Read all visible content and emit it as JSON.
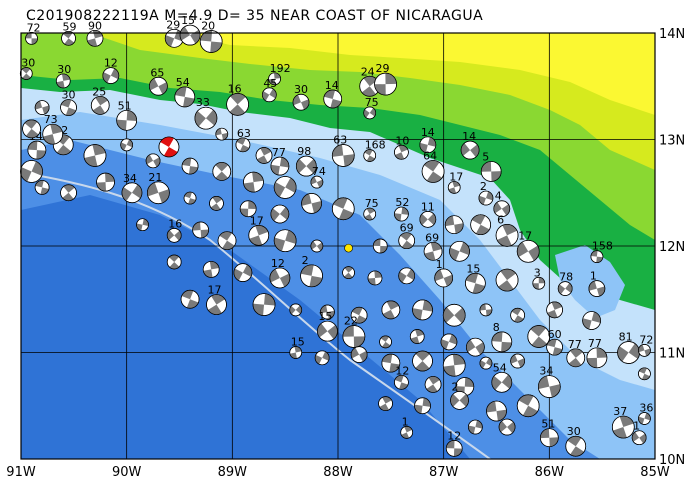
{
  "title": "C201908222119A  M=4.9  D= 35  NEAR COAST OF NICARAGUA",
  "map": {
    "lon_range": [
      -91,
      -85
    ],
    "lat_range": [
      10,
      14
    ],
    "lon_ticks": [
      {
        "value": -91,
        "label": "91W"
      },
      {
        "value": -90,
        "label": "90W"
      },
      {
        "value": -89,
        "label": "89W"
      },
      {
        "value": -88,
        "label": "88W"
      },
      {
        "value": -87,
        "label": "87W"
      },
      {
        "value": -86,
        "label": "86W"
      },
      {
        "value": -85,
        "label": "85W"
      }
    ],
    "lat_ticks": [
      {
        "value": 14,
        "label": "14N"
      },
      {
        "value": 13,
        "label": "13N"
      },
      {
        "value": 12,
        "label": "12N"
      },
      {
        "value": 11,
        "label": "11N"
      },
      {
        "value": 10,
        "label": "10N"
      }
    ],
    "colors": {
      "deep_ocean": "#2f73d6",
      "mid_ocean": "#4d8fe6",
      "shelf": "#8ec4f7",
      "coast_shallow": "#c4e2fb",
      "lowland": "#19b043",
      "hill": "#8ad832",
      "upland": "#d6ea1e",
      "highland": "#fbf832",
      "focal_fill": "#7a7a7a",
      "target_fill": "#e01010",
      "grid": "#000000"
    },
    "target_event": {
      "lon": -89.6,
      "lat": 12.93,
      "label": ""
    },
    "epicenter": {
      "lon": -87.9,
      "lat": 11.98
    },
    "events": [
      {
        "lon": -90.9,
        "lat": 13.95,
        "label": "72"
      },
      {
        "lon": -90.55,
        "lat": 13.95,
        "label": "59"
      },
      {
        "lon": -90.3,
        "lat": 13.95,
        "label": "90"
      },
      {
        "lon": -89.55,
        "lat": 13.95,
        "label": "29"
      },
      {
        "lon": -89.4,
        "lat": 13.98,
        "label": "15"
      },
      {
        "lon": -89.2,
        "lat": 13.92,
        "label": "20"
      },
      {
        "lon": -90.95,
        "lat": 13.62,
        "label": "30"
      },
      {
        "lon": -90.6,
        "lat": 13.55,
        "label": "30"
      },
      {
        "lon": -90.15,
        "lat": 13.6,
        "label": "12"
      },
      {
        "lon": -89.7,
        "lat": 13.5,
        "label": "65"
      },
      {
        "lon": -89.45,
        "lat": 13.4,
        "label": "54"
      },
      {
        "lon": -88.95,
        "lat": 13.33,
        "label": "16"
      },
      {
        "lon": -88.6,
        "lat": 13.57,
        "label": "192"
      },
      {
        "lon": -88.65,
        "lat": 13.42,
        "label": "45"
      },
      {
        "lon": -88.35,
        "lat": 13.35,
        "label": "30"
      },
      {
        "lon": -88.05,
        "lat": 13.38,
        "label": "14"
      },
      {
        "lon": -87.7,
        "lat": 13.5,
        "label": "24"
      },
      {
        "lon": -87.55,
        "lat": 13.52,
        "label": "29"
      },
      {
        "lon": -87.7,
        "lat": 13.25,
        "label": "75"
      },
      {
        "lon": -90.8,
        "lat": 13.3,
        "label": ""
      },
      {
        "lon": -90.55,
        "lat": 13.3,
        "label": "30"
      },
      {
        "lon": -90.25,
        "lat": 13.32,
        "label": "25"
      },
      {
        "lon": -90.0,
        "lat": 13.18,
        "label": "51"
      },
      {
        "lon": -89.25,
        "lat": 13.2,
        "label": "33"
      },
      {
        "lon": -89.1,
        "lat": 13.05,
        "label": ""
      },
      {
        "lon": -88.9,
        "lat": 12.95,
        "label": "63"
      },
      {
        "lon": -88.7,
        "lat": 12.85,
        "label": ""
      },
      {
        "lon": -88.55,
        "lat": 12.75,
        "label": "77"
      },
      {
        "lon": -88.3,
        "lat": 12.75,
        "label": "98"
      },
      {
        "lon": -87.95,
        "lat": 12.85,
        "label": "63"
      },
      {
        "lon": -87.7,
        "lat": 12.85,
        "label": "168"
      },
      {
        "lon": -87.4,
        "lat": 12.88,
        "label": "10"
      },
      {
        "lon": -87.15,
        "lat": 12.95,
        "label": "14"
      },
      {
        "lon": -86.75,
        "lat": 12.9,
        "label": "14"
      },
      {
        "lon": -86.55,
        "lat": 12.7,
        "label": "5"
      },
      {
        "lon": -87.1,
        "lat": 12.7,
        "label": "64"
      },
      {
        "lon": -86.9,
        "lat": 12.55,
        "label": "17"
      },
      {
        "lon": -86.6,
        "lat": 12.45,
        "label": "2"
      },
      {
        "lon": -86.45,
        "lat": 12.35,
        "label": "4"
      },
      {
        "lon": -90.85,
        "lat": 12.9,
        "label": "14"
      },
      {
        "lon": -90.6,
        "lat": 12.95,
        "label": "12"
      },
      {
        "lon": -90.3,
        "lat": 12.85,
        "label": ""
      },
      {
        "lon": -90.0,
        "lat": 12.95,
        "label": ""
      },
      {
        "lon": -89.75,
        "lat": 12.8,
        "label": ""
      },
      {
        "lon": -89.4,
        "lat": 12.75,
        "label": ""
      },
      {
        "lon": -89.1,
        "lat": 12.7,
        "label": ""
      },
      {
        "lon": -88.8,
        "lat": 12.6,
        "label": ""
      },
      {
        "lon": -88.5,
        "lat": 12.55,
        "label": ""
      },
      {
        "lon": -88.2,
        "lat": 12.6,
        "label": "74"
      },
      {
        "lon": -90.8,
        "lat": 12.55,
        "label": ""
      },
      {
        "lon": -90.55,
        "lat": 12.5,
        "label": ""
      },
      {
        "lon": -90.2,
        "lat": 12.6,
        "label": ""
      },
      {
        "lon": -89.95,
        "lat": 12.5,
        "label": "34"
      },
      {
        "lon": -89.7,
        "lat": 12.5,
        "label": "21"
      },
      {
        "lon": -89.4,
        "lat": 12.45,
        "label": ""
      },
      {
        "lon": -89.15,
        "lat": 12.4,
        "label": ""
      },
      {
        "lon": -88.85,
        "lat": 12.35,
        "label": ""
      },
      {
        "lon": -88.55,
        "lat": 12.3,
        "label": ""
      },
      {
        "lon": -88.25,
        "lat": 12.4,
        "label": ""
      },
      {
        "lon": -87.95,
        "lat": 12.35,
        "label": ""
      },
      {
        "lon": -87.7,
        "lat": 12.3,
        "label": "75"
      },
      {
        "lon": -87.4,
        "lat": 12.3,
        "label": "52"
      },
      {
        "lon": -87.15,
        "lat": 12.25,
        "label": "11"
      },
      {
        "lon": -86.9,
        "lat": 12.2,
        "label": ""
      },
      {
        "lon": -86.65,
        "lat": 12.2,
        "label": ""
      },
      {
        "lon": -86.4,
        "lat": 12.1,
        "label": "6"
      },
      {
        "lon": -89.85,
        "lat": 12.2,
        "label": ""
      },
      {
        "lon": -89.55,
        "lat": 12.1,
        "label": "16"
      },
      {
        "lon": -89.3,
        "lat": 12.15,
        "label": ""
      },
      {
        "lon": -89.05,
        "lat": 12.05,
        "label": ""
      },
      {
        "lon": -88.75,
        "lat": 12.1,
        "label": "17"
      },
      {
        "lon": -88.5,
        "lat": 12.05,
        "label": ""
      },
      {
        "lon": -88.2,
        "lat": 12.0,
        "label": ""
      },
      {
        "lon": -87.6,
        "lat": 12.0,
        "label": ""
      },
      {
        "lon": -87.35,
        "lat": 12.05,
        "label": "69"
      },
      {
        "lon": -87.1,
        "lat": 11.95,
        "label": "69"
      },
      {
        "lon": -86.85,
        "lat": 11.95,
        "label": ""
      },
      {
        "lon": -86.2,
        "lat": 11.95,
        "label": "17"
      },
      {
        "lon": -85.55,
        "lat": 11.9,
        "label": "158"
      },
      {
        "lon": -89.55,
        "lat": 11.85,
        "label": ""
      },
      {
        "lon": -89.2,
        "lat": 11.78,
        "label": ""
      },
      {
        "lon": -88.9,
        "lat": 11.75,
        "label": ""
      },
      {
        "lon": -88.55,
        "lat": 11.7,
        "label": "12"
      },
      {
        "lon": -88.25,
        "lat": 11.72,
        "label": "2"
      },
      {
        "lon": -87.9,
        "lat": 11.75,
        "label": ""
      },
      {
        "lon": -87.65,
        "lat": 11.7,
        "label": ""
      },
      {
        "lon": -87.35,
        "lat": 11.72,
        "label": ""
      },
      {
        "lon": -87.0,
        "lat": 11.7,
        "label": "1"
      },
      {
        "lon": -86.7,
        "lat": 11.65,
        "label": "15"
      },
      {
        "lon": -86.4,
        "lat": 11.68,
        "label": ""
      },
      {
        "lon": -86.1,
        "lat": 11.65,
        "label": "3"
      },
      {
        "lon": -85.85,
        "lat": 11.6,
        "label": "78"
      },
      {
        "lon": -85.55,
        "lat": 11.6,
        "label": "1"
      },
      {
        "lon": -89.4,
        "lat": 11.5,
        "label": ""
      },
      {
        "lon": -89.15,
        "lat": 11.45,
        "label": "17"
      },
      {
        "lon": -88.7,
        "lat": 11.45,
        "label": ""
      },
      {
        "lon": -88.4,
        "lat": 11.4,
        "label": ""
      },
      {
        "lon": -88.1,
        "lat": 11.38,
        "label": ""
      },
      {
        "lon": -87.8,
        "lat": 11.35,
        "label": ""
      },
      {
        "lon": -87.5,
        "lat": 11.4,
        "label": ""
      },
      {
        "lon": -87.2,
        "lat": 11.4,
        "label": ""
      },
      {
        "lon": -86.9,
        "lat": 11.35,
        "label": ""
      },
      {
        "lon": -86.6,
        "lat": 11.4,
        "label": ""
      },
      {
        "lon": -86.3,
        "lat": 11.35,
        "label": ""
      },
      {
        "lon": -85.95,
        "lat": 11.4,
        "label": ""
      },
      {
        "lon": -85.6,
        "lat": 11.3,
        "label": ""
      },
      {
        "lon": -88.1,
        "lat": 11.2,
        "label": "15"
      },
      {
        "lon": -87.85,
        "lat": 11.15,
        "label": "22"
      },
      {
        "lon": -87.55,
        "lat": 11.1,
        "label": ""
      },
      {
        "lon": -87.25,
        "lat": 11.15,
        "label": ""
      },
      {
        "lon": -86.95,
        "lat": 11.1,
        "label": ""
      },
      {
        "lon": -86.7,
        "lat": 11.05,
        "label": ""
      },
      {
        "lon": -86.45,
        "lat": 11.1,
        "label": "8"
      },
      {
        "lon": -86.1,
        "lat": 11.15,
        "label": ""
      },
      {
        "lon": -88.4,
        "lat": 11.0,
        "label": "15"
      },
      {
        "lon": -88.15,
        "lat": 10.95,
        "label": ""
      },
      {
        "lon": -87.8,
        "lat": 10.98,
        "label": ""
      },
      {
        "lon": -87.5,
        "lat": 10.9,
        "label": ""
      },
      {
        "lon": -87.2,
        "lat": 10.92,
        "label": ""
      },
      {
        "lon": -86.9,
        "lat": 10.88,
        "label": ""
      },
      {
        "lon": -86.6,
        "lat": 10.9,
        "label": ""
      },
      {
        "lon": -86.3,
        "lat": 10.92,
        "label": ""
      },
      {
        "lon": -85.95,
        "lat": 11.05,
        "label": "60"
      },
      {
        "lon": -85.75,
        "lat": 10.95,
        "label": "77"
      },
      {
        "lon": -85.55,
        "lat": 10.95,
        "label": "77"
      },
      {
        "lon": -85.25,
        "lat": 11.0,
        "label": "81"
      },
      {
        "lon": -85.1,
        "lat": 11.02,
        "label": "72"
      },
      {
        "lon": -87.4,
        "lat": 10.72,
        "label": "12"
      },
      {
        "lon": -87.1,
        "lat": 10.7,
        "label": ""
      },
      {
        "lon": -86.8,
        "lat": 10.68,
        "label": ""
      },
      {
        "lon": -86.45,
        "lat": 10.72,
        "label": "54"
      },
      {
        "lon": -86.0,
        "lat": 10.68,
        "label": "34"
      },
      {
        "lon": -85.1,
        "lat": 10.8,
        "label": ""
      },
      {
        "lon": -87.55,
        "lat": 10.52,
        "label": ""
      },
      {
        "lon": -87.2,
        "lat": 10.5,
        "label": ""
      },
      {
        "lon": -86.85,
        "lat": 10.55,
        "label": "2"
      },
      {
        "lon": -86.5,
        "lat": 10.45,
        "label": ""
      },
      {
        "lon": -86.2,
        "lat": 10.5,
        "label": ""
      },
      {
        "lon": -87.35,
        "lat": 10.25,
        "label": "1"
      },
      {
        "lon": -86.7,
        "lat": 10.3,
        "label": ""
      },
      {
        "lon": -86.4,
        "lat": 10.3,
        "label": ""
      },
      {
        "lon": -86.0,
        "lat": 10.2,
        "label": "51"
      },
      {
        "lon": -85.75,
        "lat": 10.12,
        "label": "30"
      },
      {
        "lon": -85.3,
        "lat": 10.3,
        "label": "37"
      },
      {
        "lon": -85.1,
        "lat": 10.38,
        "label": "36"
      },
      {
        "lon": -85.15,
        "lat": 10.2,
        "label": "1"
      },
      {
        "lon": -86.9,
        "lat": 10.1,
        "label": "12"
      },
      {
        "lon": -90.9,
        "lat": 13.1,
        "label": ""
      },
      {
        "lon": -90.7,
        "lat": 13.05,
        "label": "73"
      },
      {
        "lon": -90.9,
        "lat": 12.7,
        "label": ""
      }
    ]
  }
}
